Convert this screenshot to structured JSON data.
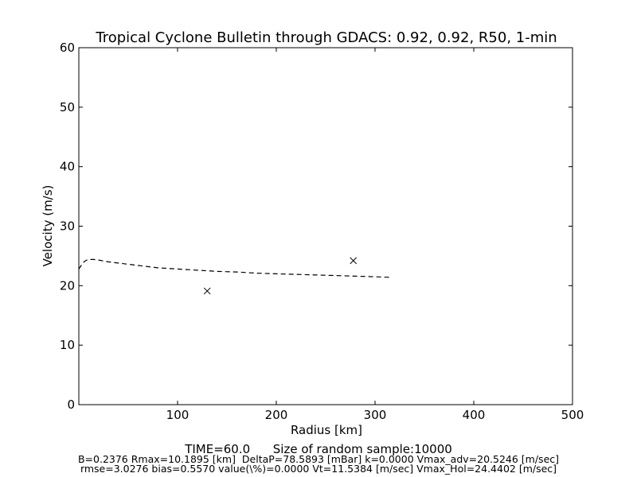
{
  "chart_data": {
    "type": "line",
    "title": "Tropical Cyclone Bulletin through GDACS: 0.92, 0.92, R50, 1-min",
    "xlabel": "Radius [km]",
    "ylabel": "Velocity (m/s)",
    "xlim": [
      0,
      500
    ],
    "ylim": [
      0,
      60
    ],
    "xticks": [
      100,
      200,
      300,
      400,
      500
    ],
    "xtick_labels": [
      "100",
      "200",
      "300",
      "400",
      "500"
    ],
    "yticks": [
      0,
      10,
      20,
      30,
      40,
      50,
      60
    ],
    "ytick_labels": [
      "0",
      "10",
      "20",
      "30",
      "40",
      "50",
      "60"
    ],
    "grid": false,
    "series": [
      {
        "style": "dashed-line",
        "color": "#000000",
        "x": [
          0,
          2,
          4,
          6,
          8,
          10,
          15,
          20,
          30,
          40,
          50,
          60,
          70,
          80,
          90,
          100,
          120,
          140,
          160,
          180,
          200,
          220,
          240,
          260,
          280,
          300,
          315
        ],
        "y": [
          22.8,
          23.3,
          23.8,
          24.1,
          24.3,
          24.4,
          24.4,
          24.3,
          24.0,
          23.8,
          23.6,
          23.4,
          23.2,
          23.0,
          22.9,
          22.8,
          22.6,
          22.4,
          22.3,
          22.1,
          22.0,
          21.9,
          21.8,
          21.7,
          21.6,
          21.5,
          21.4
        ]
      },
      {
        "style": "x-marker",
        "color": "#000000",
        "x": [
          130,
          278
        ],
        "y": [
          19.1,
          24.2
        ]
      }
    ]
  },
  "footer": {
    "line1": "TIME=60.0      Size of random sample:10000",
    "line2": "B=0.2376 Rmax=10.1895 [km]  DeltaP=78.5893 [mBar] k=0.0000 Vmax_adv=20.5246 [m/sec]",
    "line3": "rmse=3.0276 bias=0.5570 value(\\%)=0.0000 Vt=11.5384 [m/sec] Vmax_Hol=24.4402 [m/sec]"
  }
}
